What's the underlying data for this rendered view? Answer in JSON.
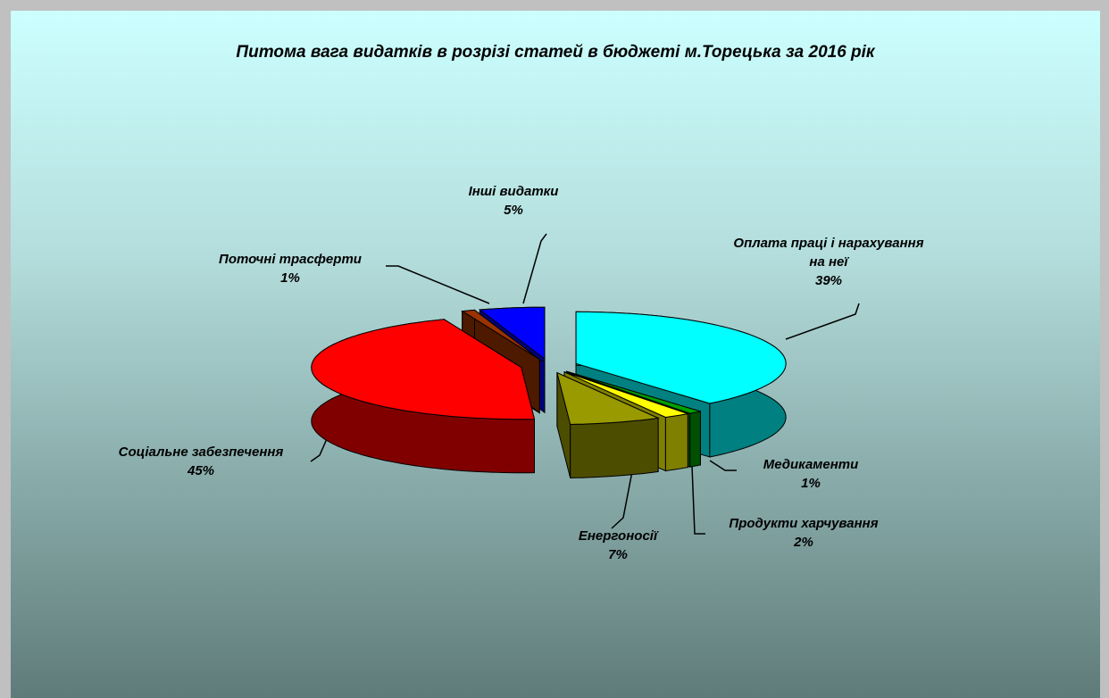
{
  "chart_data": {
    "type": "pie3d",
    "title": "Питома вага видатків в розрізі статей в бюджеті м.Торецька за 2016 рік",
    "categories": [
      "Оплата праці і нарахування на неї",
      "Медикаменти",
      "Продукти харчування",
      "Енергоносії",
      "Соціальне забезпечення",
      "Поточні трасферти",
      "Інші видатки"
    ],
    "values": [
      39,
      1,
      2,
      7,
      45,
      1,
      5
    ],
    "value_labels": [
      "39%",
      "1%",
      "2%",
      "7%",
      "45%",
      "1%",
      "5%"
    ],
    "colors": [
      "#00ffff",
      "#00a000",
      "#ffff00",
      "#999900",
      "#ff0000",
      "#993300",
      "#0000ff"
    ]
  }
}
